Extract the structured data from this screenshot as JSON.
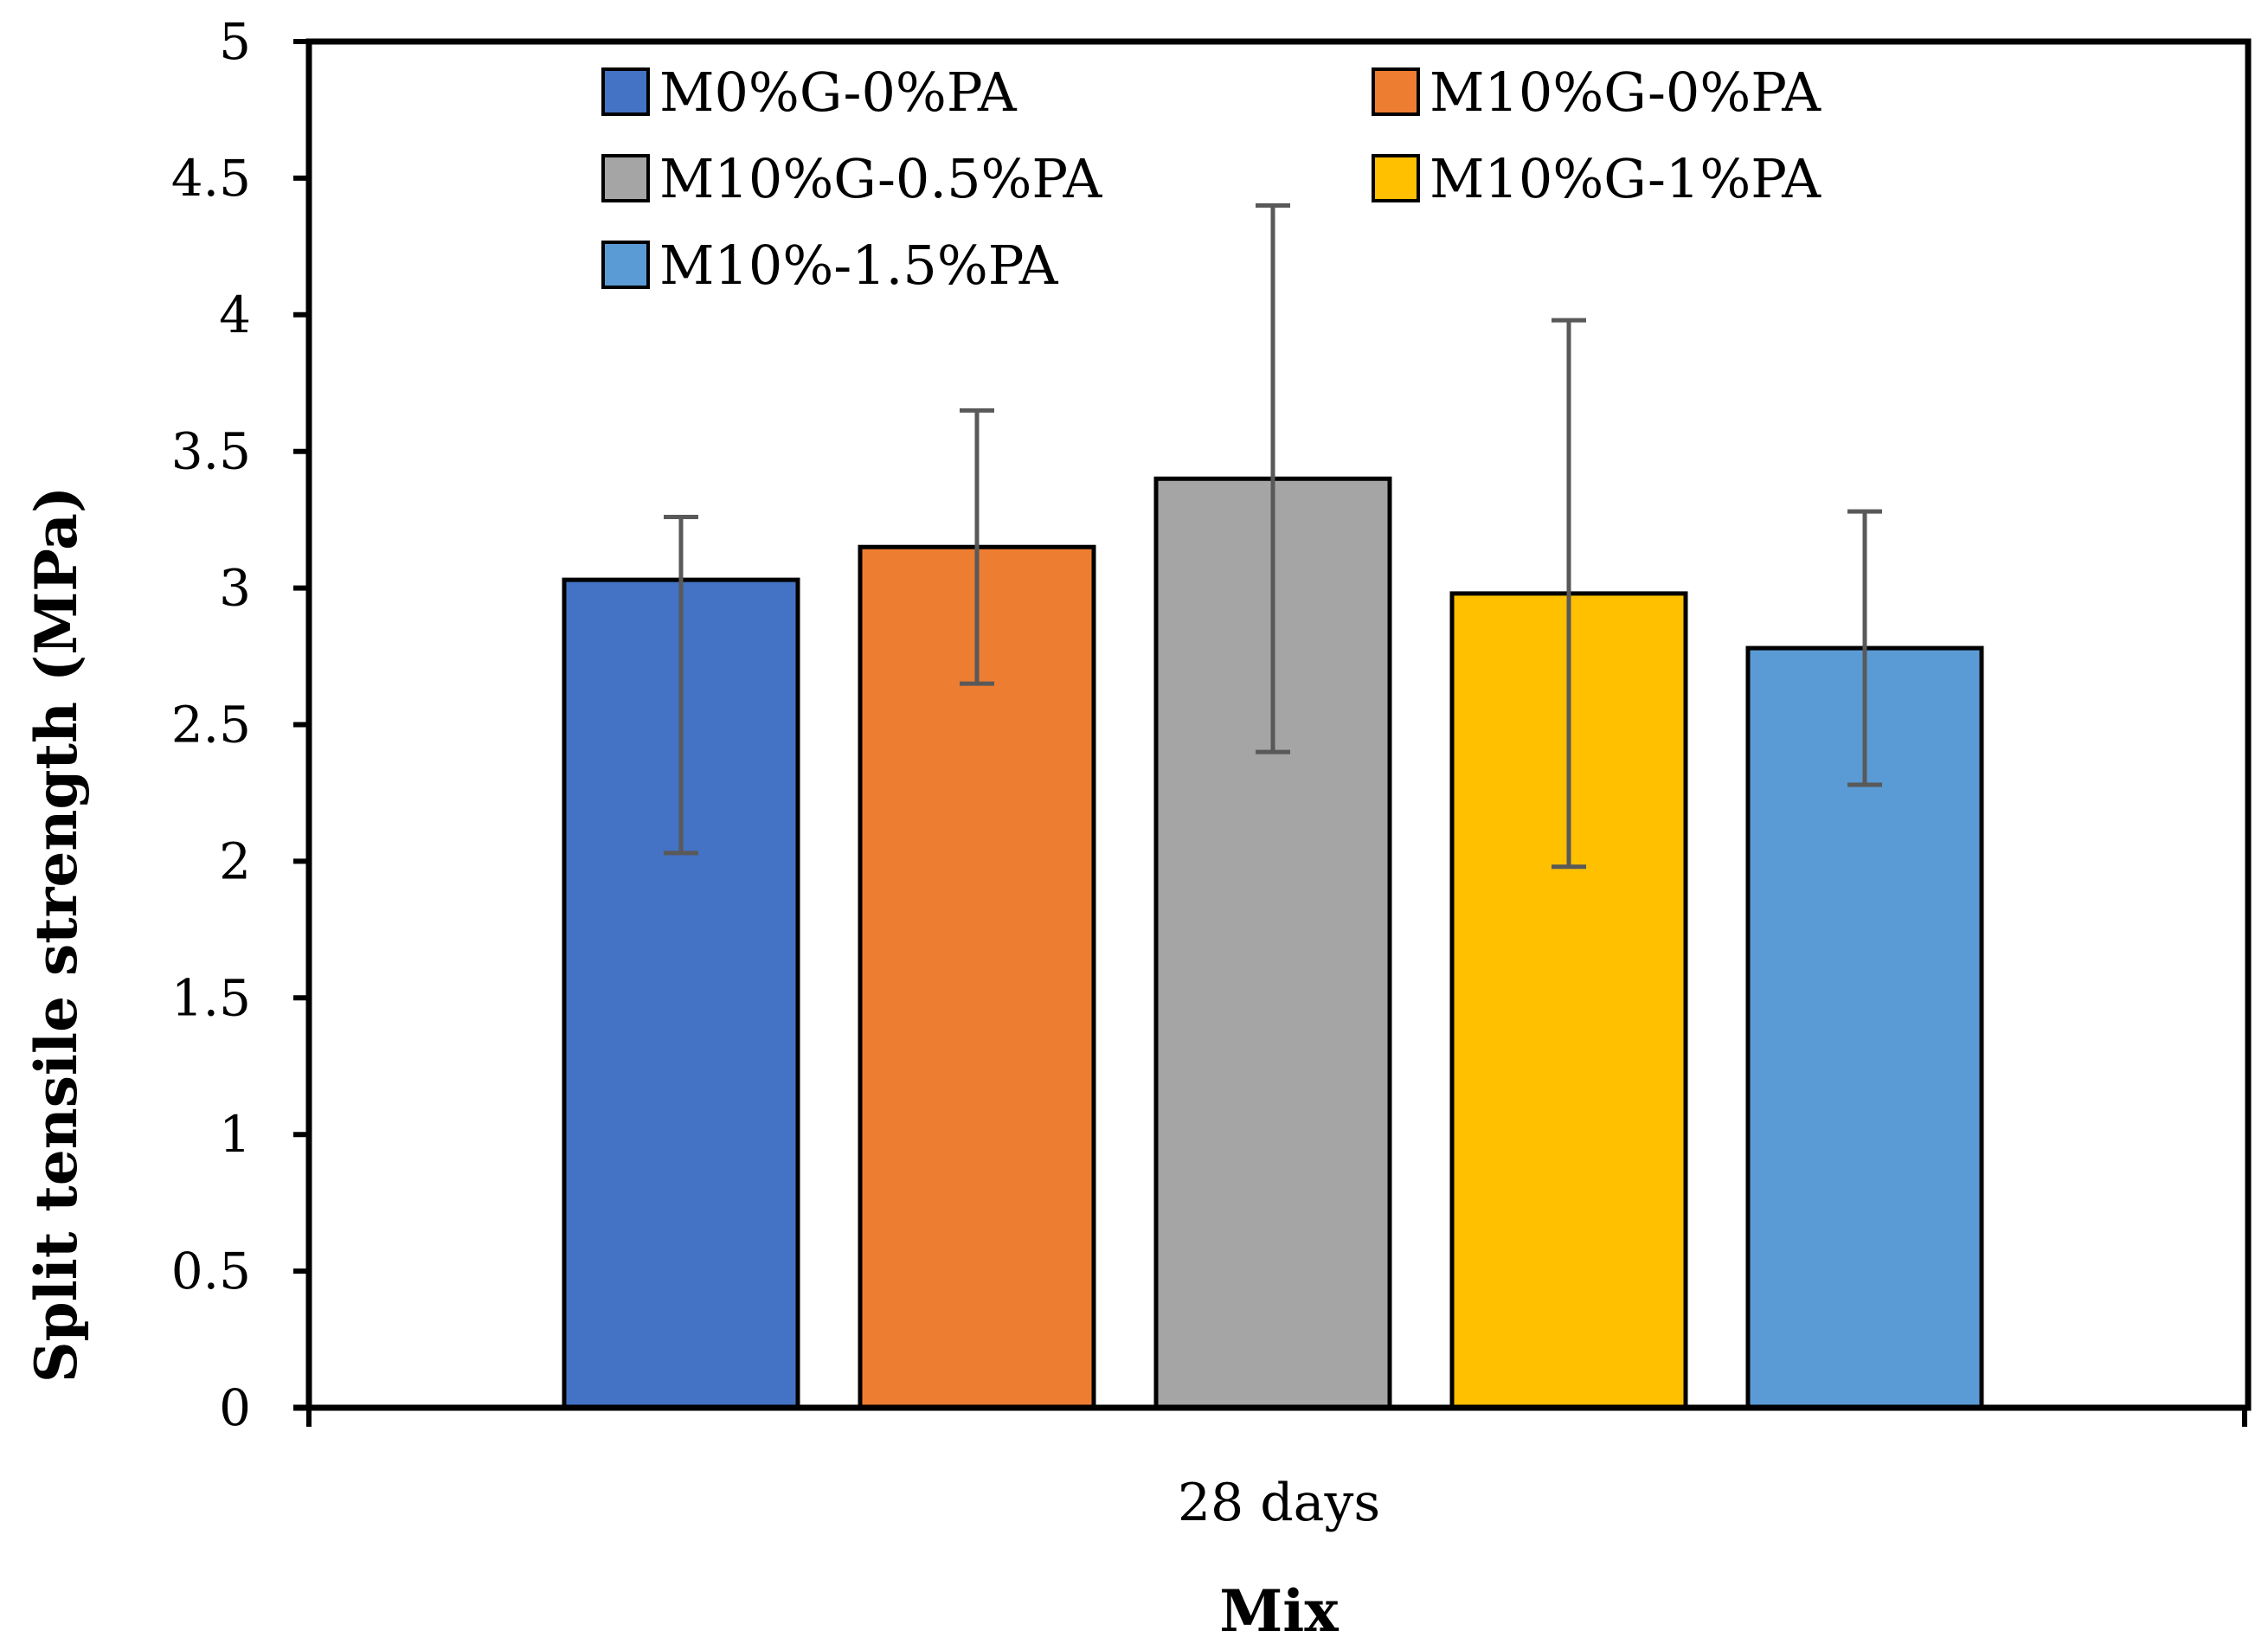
{
  "chart_data": {
    "type": "bar",
    "title": "",
    "xlabel": "Mix",
    "ylabel": "Split tensile strength (MPa)",
    "ylim": [
      0,
      5
    ],
    "ytick_step": 0.5,
    "ytick_labels": [
      "0",
      "0.5",
      "1",
      "1.5",
      "2",
      "2.5",
      "3",
      "3.5",
      "4",
      "4.5",
      "5"
    ],
    "categories": [
      "28 days"
    ],
    "legend_position": "top",
    "grid": false,
    "series": [
      {
        "name": "M0%G-0%PA",
        "values": [
          3.03
        ],
        "error_low": [
          2.03
        ],
        "error_high": [
          3.26
        ],
        "color": "#4472c4"
      },
      {
        "name": "M10%G-0%PA",
        "values": [
          3.15
        ],
        "error_low": [
          2.65
        ],
        "error_high": [
          3.65
        ],
        "color": "#ed7d31"
      },
      {
        "name": "M10%G-0.5%PA",
        "values": [
          3.4
        ],
        "error_low": [
          2.4
        ],
        "error_high": [
          4.4
        ],
        "color": "#a5a5a5"
      },
      {
        "name": "M10%G-1%PA",
        "values": [
          2.98
        ],
        "error_low": [
          1.98
        ],
        "error_high": [
          3.98
        ],
        "color": "#ffc000"
      },
      {
        "name": "M10%-1.5%PA",
        "values": [
          2.78
        ],
        "error_low": [
          2.28
        ],
        "error_high": [
          3.28
        ],
        "color": "#5b9bd5"
      }
    ],
    "error_bar_color": "#595959"
  }
}
